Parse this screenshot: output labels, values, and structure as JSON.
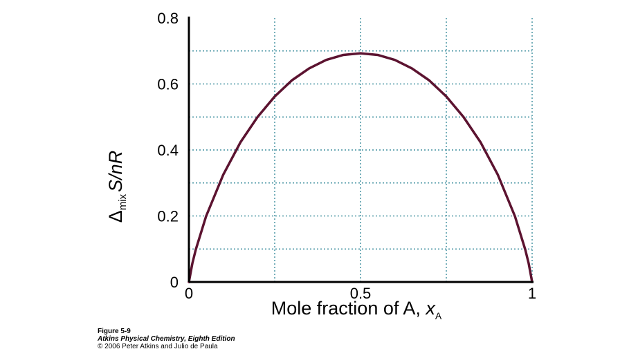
{
  "chart_data": {
    "type": "line",
    "xlabel_main": "Mole fraction of A, ",
    "xlabel_var": "x",
    "xlabel_sub": "A",
    "ylabel_pre": "Δ",
    "ylabel_sub": "mix",
    "ylabel_main": "S/nR",
    "xlim": [
      0,
      1
    ],
    "ylim": [
      0,
      0.8
    ],
    "x_ticks": [
      0,
      0.5,
      1
    ],
    "x_tick_labels": [
      "0",
      "0.5",
      "1"
    ],
    "y_ticks": [
      0,
      0.2,
      0.4,
      0.6,
      0.8
    ],
    "y_tick_labels": [
      "0",
      "0.2",
      "0.4",
      "0.6",
      "0.8"
    ],
    "grid": true,
    "x_grid": [
      0.25,
      0.5,
      0.75,
      1.0
    ],
    "y_grid": [
      0.1,
      0.2,
      0.3,
      0.4,
      0.5,
      0.6,
      0.7
    ],
    "series": [
      {
        "color": "#5c1330",
        "x": [
          0.0,
          0.01,
          0.02,
          0.05,
          0.1,
          0.15,
          0.2,
          0.25,
          0.3,
          0.35,
          0.4,
          0.45,
          0.5,
          0.55,
          0.6,
          0.65,
          0.7,
          0.75,
          0.8,
          0.85,
          0.9,
          0.95,
          0.98,
          0.99,
          1.0
        ],
        "y": [
          0.0,
          0.056,
          0.098,
          0.199,
          0.325,
          0.423,
          0.5,
          0.562,
          0.611,
          0.647,
          0.673,
          0.688,
          0.693,
          0.688,
          0.673,
          0.647,
          0.611,
          0.562,
          0.5,
          0.423,
          0.325,
          0.199,
          0.098,
          0.056,
          0.0
        ]
      }
    ]
  },
  "caption": {
    "figure": "Figure 5-9",
    "book": "Atkins Physical Chemistry, Eighth Edition",
    "copyright": "© 2006 Peter Atkins and Julio de Paula"
  },
  "colors": {
    "grid": "#1a7a8c",
    "axis": "#000000",
    "curve": "#5c1330"
  }
}
